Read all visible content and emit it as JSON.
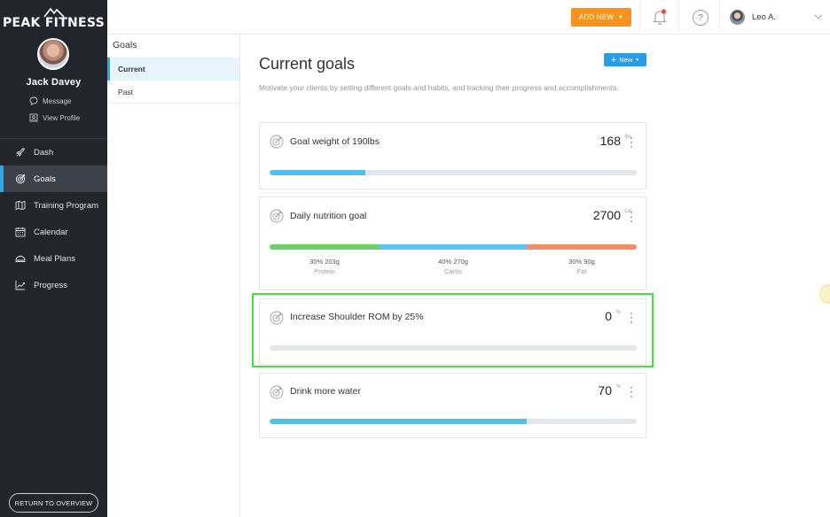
{
  "brand": {
    "name": "PEAK FITNESS"
  },
  "client": {
    "name": "Jack Davey",
    "links": [
      {
        "label": "Message",
        "icon": "chat-icon"
      },
      {
        "label": "View Profile",
        "icon": "profile-icon"
      }
    ]
  },
  "nav": {
    "items": [
      {
        "label": "Dash",
        "icon": "rocket-icon",
        "active": false
      },
      {
        "label": "Goals",
        "icon": "target-icon",
        "active": true
      },
      {
        "label": "Training Program",
        "icon": "map-icon",
        "active": false
      },
      {
        "label": "Calendar",
        "icon": "calendar-icon",
        "active": false
      },
      {
        "label": "Meal Plans",
        "icon": "meal-icon",
        "active": false
      },
      {
        "label": "Progress",
        "icon": "chart-icon",
        "active": false
      }
    ],
    "return_label": "RETURN TO OVERVIEW"
  },
  "subnav": {
    "title": "Goals",
    "items": [
      {
        "label": "Current",
        "active": true
      },
      {
        "label": "Past",
        "active": false
      }
    ]
  },
  "topbar": {
    "add_new_label": "ADD NEW",
    "help_label": "?",
    "user_name": "Leo A.",
    "notification_dot_color": "#e84a3c",
    "accent_color": "#f7931e"
  },
  "main": {
    "title": "Current goals",
    "new_label": "New",
    "description": "Motivate your clients by setting different goals and habits, and tracking their progress and accomplishments."
  },
  "goals": [
    {
      "title": "Goal weight of 190lbs",
      "value": "168",
      "unit": "lbs",
      "progress": 0.26
    },
    {
      "title": "Daily nutrition goal",
      "value": "2700",
      "unit": "cal",
      "macros": [
        {
          "line": "30% 203g",
          "name": "Protein",
          "share": 0.3,
          "color": "#6fcf6d"
        },
        {
          "line": "40% 270g",
          "name": "Carbs",
          "share": 0.4,
          "color": "#5ec3ef"
        },
        {
          "line": "30% 90g",
          "name": "Fat",
          "share": 0.3,
          "color": "#f0906a"
        }
      ]
    },
    {
      "title": "Increase Shoulder ROM by 25%",
      "value": "0",
      "unit": "%",
      "progress": 0
    },
    {
      "title": "Drink more water",
      "value": "70",
      "unit": "%",
      "progress": 0.7
    }
  ]
}
